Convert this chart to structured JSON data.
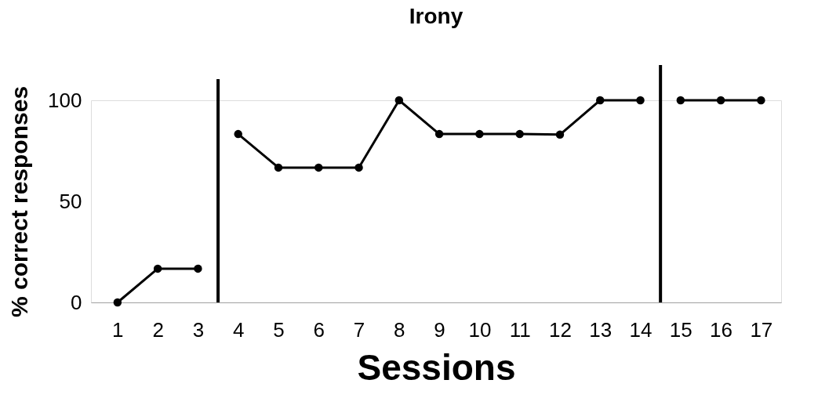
{
  "chart_data": {
    "type": "line",
    "title": "Irony",
    "xlabel": "Sessions",
    "ylabel": "% correct responses",
    "xlim": [
      0.34,
      17.5
    ],
    "xticks": [
      1,
      2,
      3,
      4,
      5,
      6,
      7,
      8,
      9,
      10,
      11,
      12,
      13,
      14,
      15,
      16,
      17
    ],
    "ylim": [
      0,
      100
    ],
    "yticks": [
      0,
      50,
      100
    ],
    "series": [
      {
        "color": "#000000",
        "x": [
          1,
          2,
          3
        ],
        "values": [
          0,
          16.7,
          16.7
        ]
      },
      {
        "color": "#000000",
        "x": [
          4,
          5,
          6,
          7,
          8,
          9,
          10,
          11,
          12,
          13,
          14
        ],
        "values": [
          83.3,
          66.7,
          66.7,
          66.7,
          100,
          83.3,
          83.3,
          83.3,
          83,
          100,
          100
        ]
      },
      {
        "color": "#000000",
        "x": [
          15,
          16,
          17
        ],
        "values": [
          100,
          100,
          100
        ]
      }
    ],
    "ref_lines": [
      {
        "axis": "x",
        "value": 3.5,
        "color": "#000000"
      },
      {
        "axis": "x",
        "value": 14.5,
        "color": "#000000"
      }
    ],
    "marker": "circle",
    "line_style": "solid",
    "grid": false,
    "legend": false
  }
}
